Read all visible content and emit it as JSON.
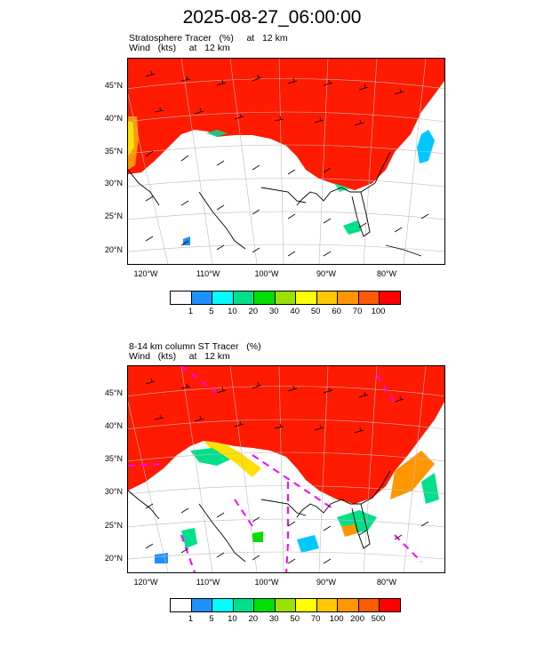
{
  "title": "2025-08-27_06:00:00",
  "panels": [
    {
      "line1": "Stratosphere Tracer   (%)     at   12 km",
      "line2": "Wind   (kts)     at   12 km",
      "lat_labels": [
        "45°N",
        "40°N",
        "35°N",
        "30°N",
        "25°N",
        "20°N"
      ],
      "lon_labels": [
        "120°W",
        "110°W",
        "100°W",
        "90°W",
        "80°W"
      ],
      "colorbar": {
        "colors": [
          "#ffffff",
          "#1e90ff",
          "#00ffff",
          "#00e08a",
          "#00e000",
          "#9ae000",
          "#ffff00",
          "#ffc800",
          "#ff9600",
          "#ff5a00",
          "#ff0000"
        ],
        "labels": [
          "1",
          "5",
          "10",
          "20",
          "30",
          "40",
          "50",
          "60",
          "70",
          "100"
        ]
      }
    },
    {
      "line1": "8-14 km column ST Tracer   (%)",
      "line2": "Wind   (kts)     at   12 km",
      "lat_labels": [
        "45°N",
        "40°N",
        "35°N",
        "30°N",
        "25°N",
        "20°N"
      ],
      "lon_labels": [
        "120°W",
        "110°W",
        "100°W",
        "90°W",
        "80°W"
      ],
      "colorbar": {
        "colors": [
          "#ffffff",
          "#1e90ff",
          "#00ffff",
          "#00e08a",
          "#00e000",
          "#9ae000",
          "#ffff00",
          "#ffc800",
          "#ff9600",
          "#ff5a00",
          "#ff0000"
        ],
        "labels": [
          "1",
          "5",
          "10",
          "20",
          "30",
          "50",
          "70",
          "100",
          "200",
          "500"
        ]
      }
    }
  ]
}
